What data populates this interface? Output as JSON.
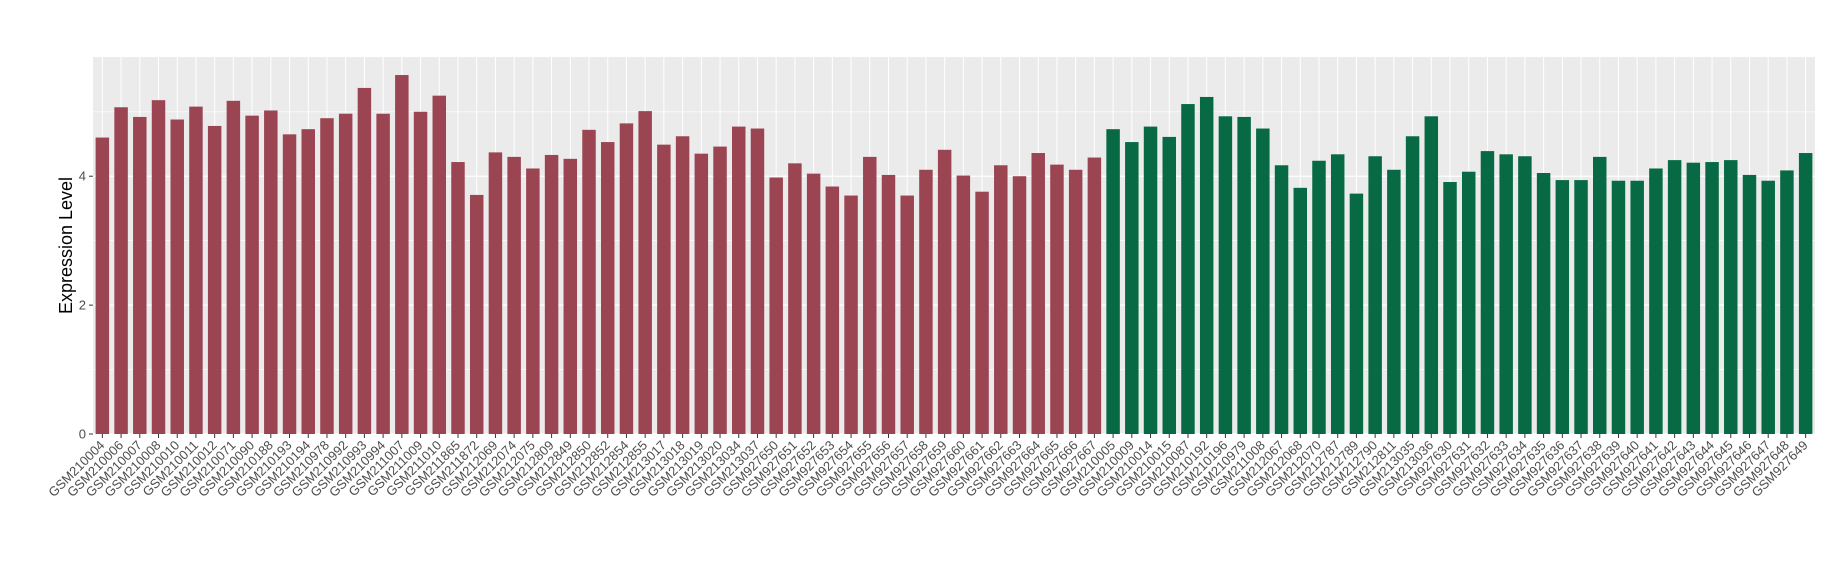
{
  "chart_data": {
    "type": "bar",
    "title": "",
    "xlabel": "",
    "ylabel": "Expression Level",
    "ylim": [
      0,
      5.85
    ],
    "yticks": [
      0,
      2,
      4
    ],
    "grid": true,
    "legend": "none",
    "colors": {
      "group1": "#9B4452",
      "group2": "#076A45",
      "panel": "#EBEBEB",
      "grid": "#FFFFFF"
    },
    "categories": [
      "GSM210004",
      "GSM210006",
      "GSM210007",
      "GSM210008",
      "GSM210010",
      "GSM210011",
      "GSM210012",
      "GSM210071",
      "GSM210090",
      "GSM210188",
      "GSM210193",
      "GSM210194",
      "GSM210978",
      "GSM210992",
      "GSM210993",
      "GSM210994",
      "GSM211007",
      "GSM211009",
      "GSM211010",
      "GSM211865",
      "GSM211872",
      "GSM212069",
      "GSM212074",
      "GSM212075",
      "GSM212809",
      "GSM212849",
      "GSM212850",
      "GSM212852",
      "GSM212854",
      "GSM212855",
      "GSM213017",
      "GSM213018",
      "GSM213019",
      "GSM213020",
      "GSM213034",
      "GSM213037",
      "GSM927650",
      "GSM927651",
      "GSM927652",
      "GSM927653",
      "GSM927654",
      "GSM927655",
      "GSM927656",
      "GSM927657",
      "GSM927658",
      "GSM927659",
      "GSM927660",
      "GSM927661",
      "GSM927662",
      "GSM927663",
      "GSM927664",
      "GSM927665",
      "GSM927666",
      "GSM927667",
      "GSM210005",
      "GSM210009",
      "GSM210014",
      "GSM210015",
      "GSM210087",
      "GSM210192",
      "GSM210196",
      "GSM210979",
      "GSM211008",
      "GSM212067",
      "GSM212068",
      "GSM212070",
      "GSM212787",
      "GSM212789",
      "GSM212790",
      "GSM212811",
      "GSM213035",
      "GSM213036",
      "GSM927630",
      "GSM927631",
      "GSM927632",
      "GSM927633",
      "GSM927634",
      "GSM927635",
      "GSM927636",
      "GSM927637",
      "GSM927638",
      "GSM927639",
      "GSM927640",
      "GSM927641",
      "GSM927642",
      "GSM927643",
      "GSM927644",
      "GSM927645",
      "GSM927646",
      "GSM927647",
      "GSM927648",
      "GSM927649"
    ],
    "values": [
      4.6,
      5.07,
      4.92,
      5.18,
      4.88,
      5.08,
      4.78,
      5.17,
      4.94,
      5.02,
      4.65,
      4.73,
      4.9,
      4.97,
      5.37,
      4.97,
      5.57,
      5.0,
      5.25,
      4.22,
      3.71,
      4.37,
      4.3,
      4.12,
      4.33,
      4.27,
      4.72,
      4.53,
      4.82,
      5.01,
      4.49,
      4.62,
      4.35,
      4.46,
      4.77,
      4.74,
      3.98,
      4.2,
      4.04,
      3.84,
      3.7,
      4.3,
      4.02,
      3.7,
      4.1,
      4.41,
      4.01,
      3.76,
      4.17,
      4.0,
      4.36,
      4.18,
      4.1,
      4.29,
      4.73,
      4.53,
      4.77,
      4.61,
      5.12,
      5.23,
      4.93,
      4.92,
      4.74,
      4.17,
      3.82,
      4.24,
      4.34,
      3.73,
      4.31,
      4.1,
      4.62,
      4.93,
      3.91,
      4.07,
      4.39,
      4.34,
      4.31,
      4.05,
      3.94,
      3.94,
      4.3,
      3.93,
      3.93,
      4.12,
      4.25,
      4.21,
      4.22,
      4.25,
      4.02,
      3.93,
      4.09,
      4.36
    ],
    "groups": [
      1,
      1,
      1,
      1,
      1,
      1,
      1,
      1,
      1,
      1,
      1,
      1,
      1,
      1,
      1,
      1,
      1,
      1,
      1,
      1,
      1,
      1,
      1,
      1,
      1,
      1,
      1,
      1,
      1,
      1,
      1,
      1,
      1,
      1,
      1,
      1,
      1,
      1,
      1,
      1,
      1,
      1,
      1,
      1,
      1,
      1,
      1,
      1,
      1,
      1,
      1,
      1,
      1,
      1,
      2,
      2,
      2,
      2,
      2,
      2,
      2,
      2,
      2,
      2,
      2,
      2,
      2,
      2,
      2,
      2,
      2,
      2,
      2,
      2,
      2,
      2,
      2,
      2,
      2,
      2,
      2,
      2,
      2,
      2,
      2,
      2,
      2,
      2,
      2,
      2,
      2,
      2
    ]
  }
}
